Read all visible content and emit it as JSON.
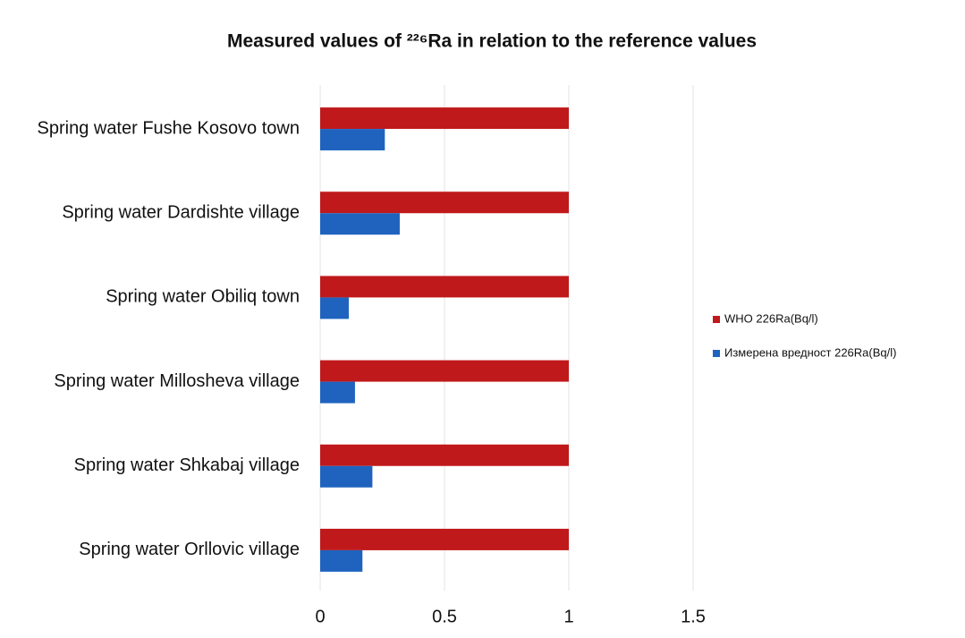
{
  "chart_data": {
    "type": "hbar",
    "title": "Measured values of ²²⁶Ra in relation to the reference values",
    "categories": [
      "Spring water Fushe Kosovo town",
      "Spring water Dardishte village",
      "Spring water Obiliq town",
      "Spring water Millosheva village",
      "Spring water Shkabaj village",
      "Spring water Orllovic village"
    ],
    "series": [
      {
        "name": "WHO 226Ra(Bq/l)",
        "color": "#c0191b",
        "values": [
          1,
          1,
          1,
          1,
          1,
          1
        ]
      },
      {
        "name": "Измерена вредност 226Ra(Bq/l)",
        "color": "#1f63bf",
        "values": [
          0.26,
          0.32,
          0.115,
          0.14,
          0.21,
          0.17
        ]
      }
    ],
    "xlim": [
      0,
      1.5
    ],
    "xticks": [
      0,
      0.5,
      1,
      1.5
    ],
    "grid": true,
    "legend": "right"
  }
}
